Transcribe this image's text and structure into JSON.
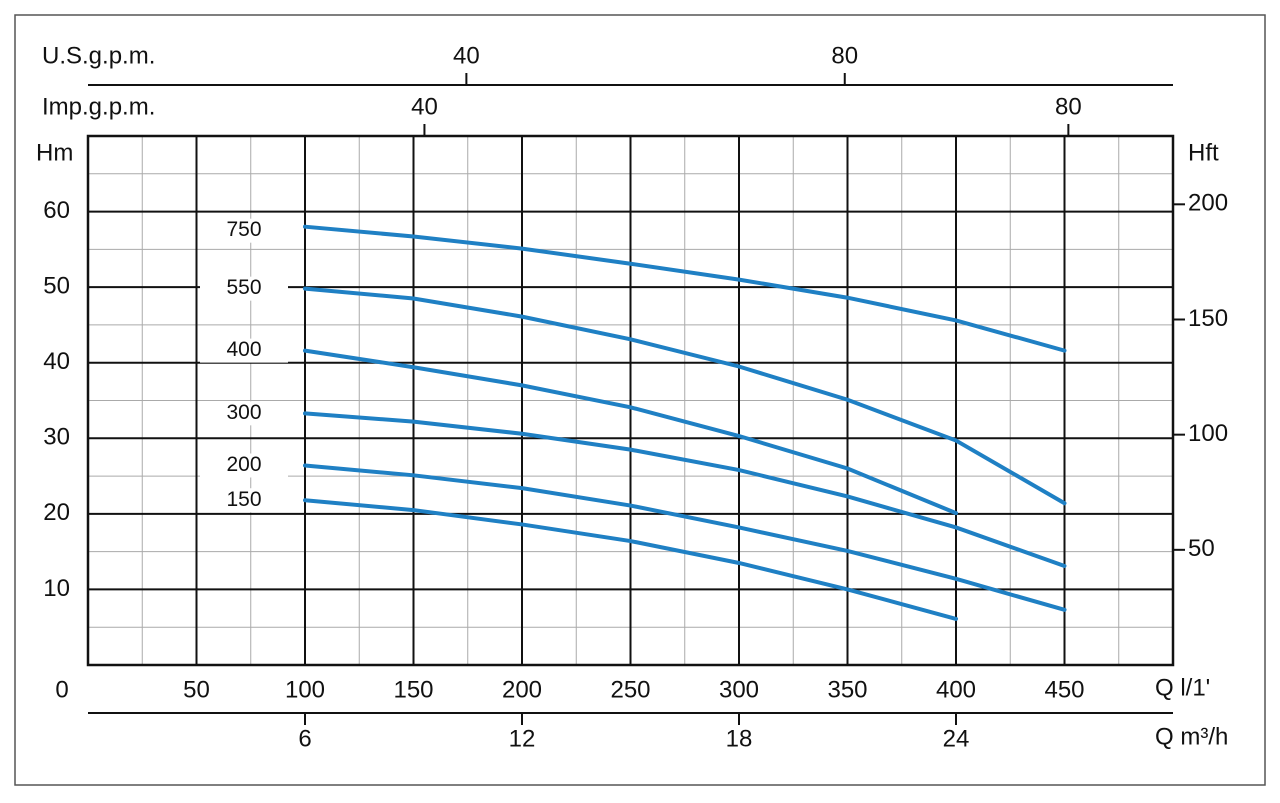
{
  "chart_data": {
    "type": "line",
    "x": [
      100,
      150,
      200,
      250,
      300,
      350,
      400,
      450
    ],
    "xlim": [
      0,
      500
    ],
    "xticks": [
      0,
      50,
      100,
      150,
      200,
      250,
      300,
      350,
      400,
      450
    ],
    "x_label": "Q l/1'",
    "x2lim": [
      0,
      30
    ],
    "x2ticks": [
      6,
      12,
      18,
      24
    ],
    "x2_label": "Q m³/h",
    "top_axes": [
      {
        "label": "U.S.g.p.m.",
        "lim": [
          0,
          114.7
        ],
        "ticks": [
          40,
          80
        ]
      },
      {
        "label": "Imp.g.p.m.",
        "lim": [
          19.1,
          86.5
        ],
        "ticks": [
          40,
          80
        ]
      }
    ],
    "ylim": [
      0,
      70
    ],
    "yticks": [
      10,
      20,
      30,
      40,
      50,
      60
    ],
    "y_label": "Hm",
    "y2lim": [
      0,
      229.66
    ],
    "y2ticks": [
      50,
      100,
      150,
      200
    ],
    "y2_label": "Hft",
    "grid": true,
    "color": "#1f80c4",
    "series": [
      {
        "name": "750",
        "values": [
          58.0,
          56.7,
          55.1,
          53.1,
          51.0,
          48.6,
          45.6,
          41.6
        ]
      },
      {
        "name": "550",
        "values": [
          49.8,
          48.5,
          46.1,
          43.1,
          39.5,
          35.1,
          29.7,
          21.4
        ]
      },
      {
        "name": "400",
        "values": [
          41.6,
          39.4,
          37.0,
          34.1,
          30.3,
          26.0,
          20.1,
          null
        ]
      },
      {
        "name": "300",
        "values": [
          33.3,
          32.2,
          30.6,
          28.5,
          25.8,
          22.3,
          18.2,
          13.1
        ]
      },
      {
        "name": "200",
        "values": [
          26.4,
          25.1,
          23.4,
          21.1,
          18.2,
          15.1,
          11.4,
          7.3
        ]
      },
      {
        "name": "150",
        "values": [
          21.8,
          20.5,
          18.6,
          16.4,
          13.5,
          10.0,
          6.1,
          null
        ]
      }
    ]
  }
}
